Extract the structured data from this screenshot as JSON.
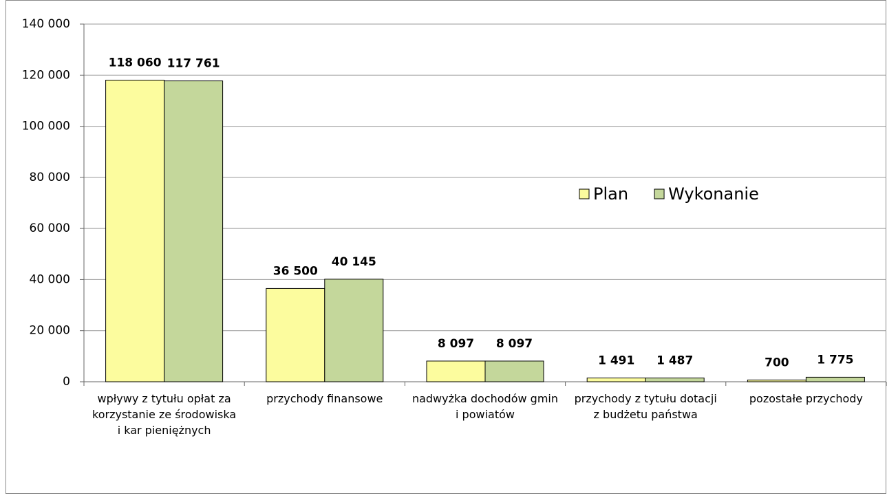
{
  "chart_data": {
    "type": "bar",
    "categories": [
      "wpływy z tytułu opłat za korzystanie ze środowiska i kar pieniężnych",
      "przychody finansowe",
      "nadwyżka dochodów gmin i powiatów",
      "przychody z tytułu dotacji z budżetu państwa",
      "pozostałe przychody"
    ],
    "series": [
      {
        "name": "Plan",
        "color": "#fcfc9e",
        "values": [
          118060,
          36500,
          8097,
          1491,
          700
        ],
        "value_labels": [
          "118 060",
          "36 500",
          "8 097",
          "1 491",
          "700"
        ]
      },
      {
        "name": "Wykonanie",
        "color": "#c4d79b",
        "values": [
          117761,
          40145,
          8097,
          1487,
          1775
        ],
        "value_labels": [
          "117 761",
          "40 145",
          "8 097",
          "1 487",
          "1 775"
        ]
      }
    ],
    "ylim": [
      0,
      140000
    ],
    "yticks": [
      0,
      {
        "value": 20000,
        "label": "20 000"
      },
      {
        "value": 40000,
        "label": "40 000"
      },
      {
        "value": 60000,
        "label": "60 000"
      },
      {
        "value": 80000,
        "label": "80 000"
      },
      {
        "value": 100000,
        "label": "100 000"
      },
      {
        "value": 120000,
        "label": "120 000"
      },
      {
        "value": 140000,
        "label": "140 000"
      }
    ],
    "grid": true,
    "legend": "right"
  }
}
